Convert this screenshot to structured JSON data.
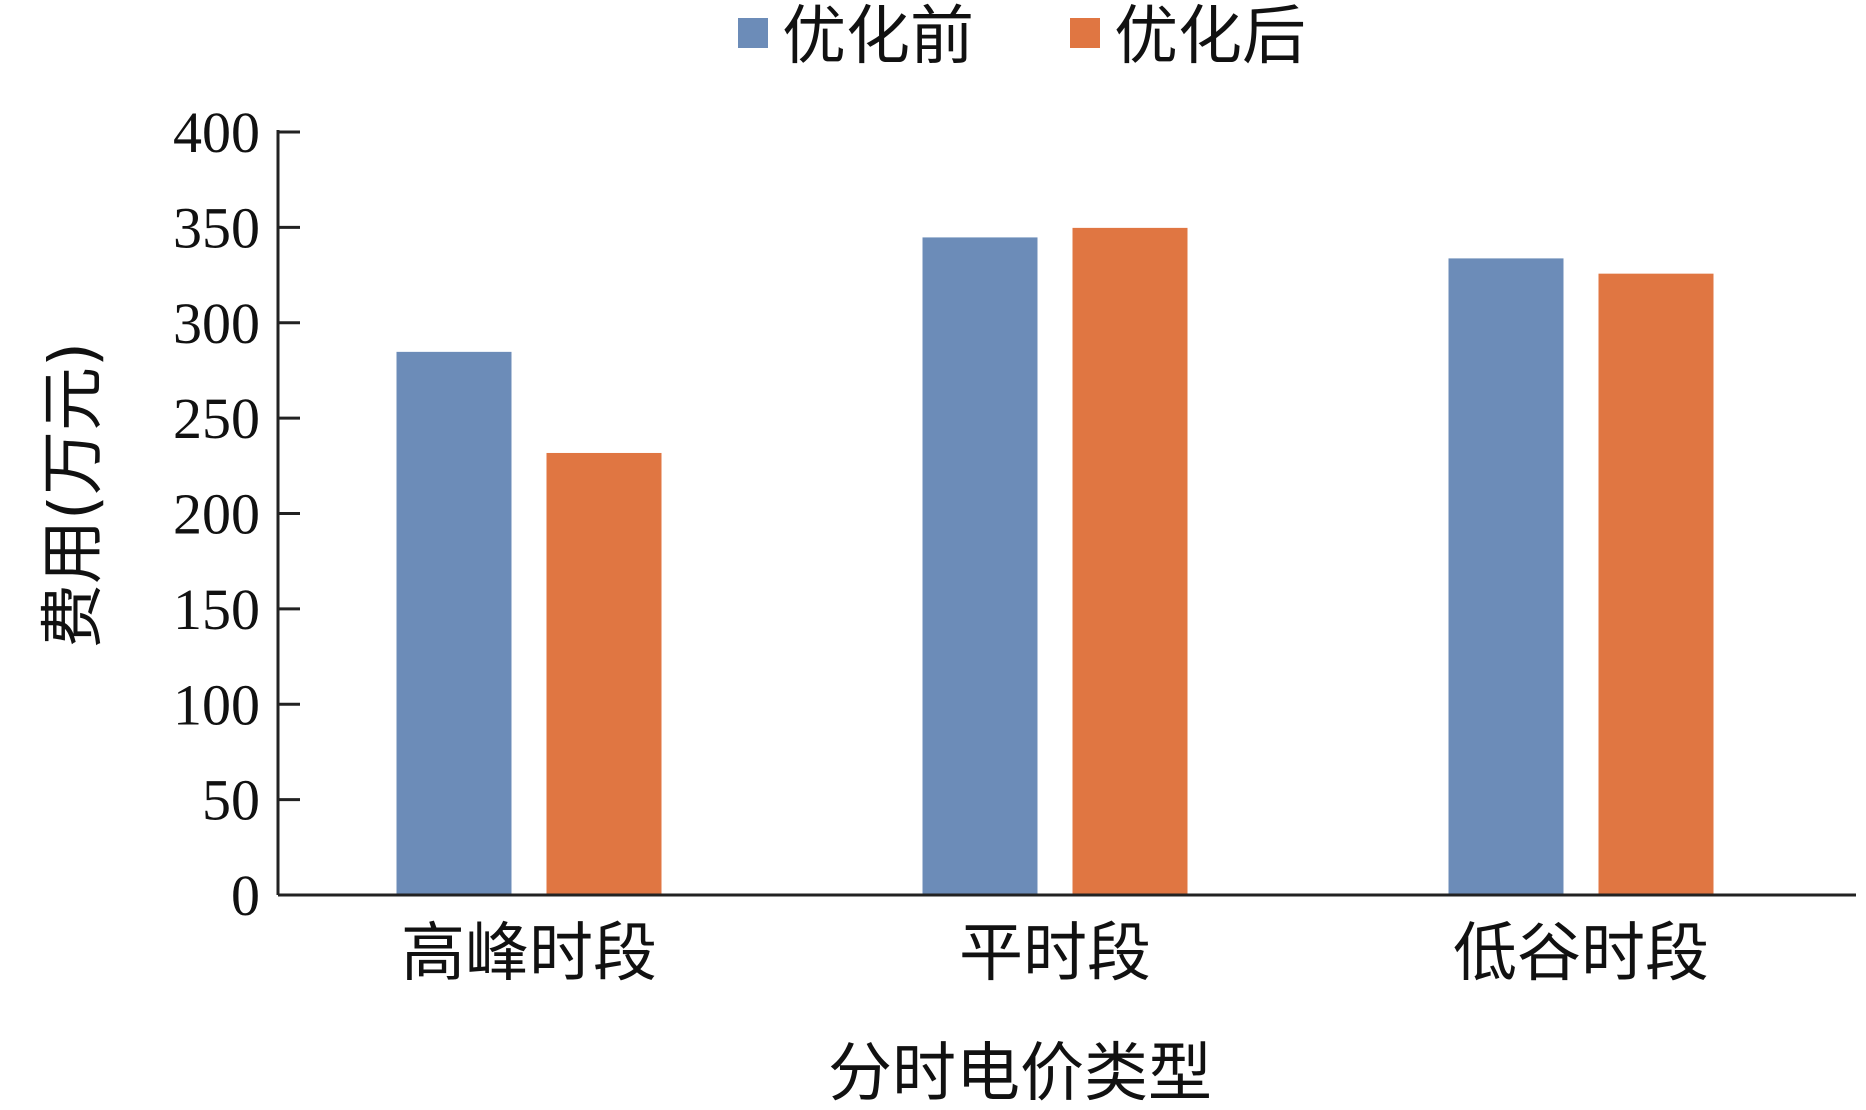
{
  "chart_data": {
    "type": "bar",
    "categories": [
      "高峰时段",
      "平时段",
      "低谷时段"
    ],
    "series": [
      {
        "name": "优化前",
        "values": [
          285,
          345,
          334
        ],
        "color": "#6c8cb8"
      },
      {
        "name": "优化后",
        "values": [
          232,
          350,
          326
        ],
        "color": "#e07642"
      }
    ],
    "xlabel": "分时电价类型",
    "ylabel": "费用(万元)",
    "ylim": [
      0,
      400
    ],
    "yticks": [
      0,
      50,
      100,
      150,
      200,
      250,
      300,
      350,
      400
    ],
    "grid": false,
    "legend_position": "top"
  }
}
